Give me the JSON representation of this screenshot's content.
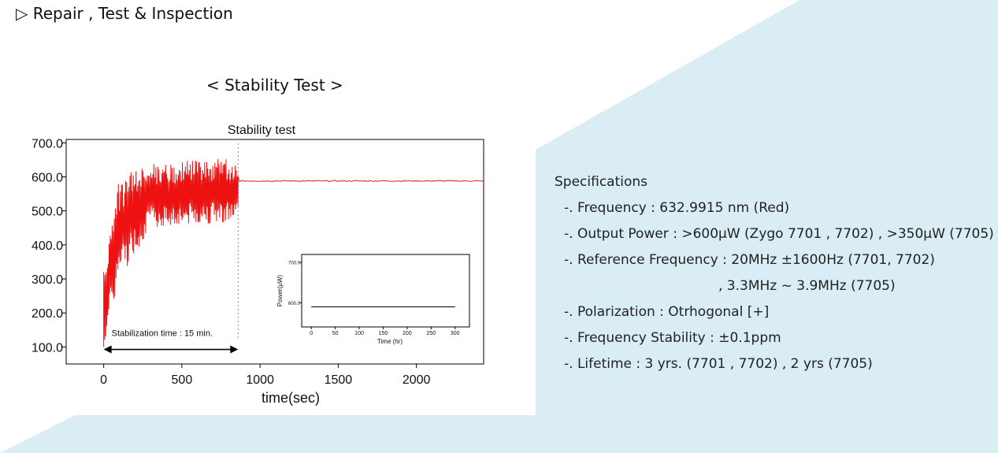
{
  "heading": "▷ Repair , Test & Inspection",
  "caption": "< Stability Test >",
  "colors": {
    "background_band": "#daecf4",
    "series_red": "#ee1111",
    "inset_line": "#000000"
  },
  "specifications": {
    "title": "Specifications",
    "lines": [
      "-. Frequency : 632.9915 nm (Red)",
      "-. Output Power : >600μW (Zygo 7701 , 7702) , >350μW (7705)",
      "-. Reference Frequency : 20MHz ±1600Hz (7701, 7702)",
      ", 3.3MHz ~ 3.9MHz (7705)",
      "-. Polarization : Otrhogonal [+]",
      "-. Frequency Stability : ±0.1ppm",
      "-. Lifetime : 3 yrs. (7701 , 7702) , 2 yrs (7705)"
    ]
  },
  "chart_data": {
    "type": "line",
    "title": "Stability test",
    "xlabel": "time(sec)",
    "ylabel": "",
    "xlim": [
      -240,
      2430
    ],
    "ylim": [
      50,
      710
    ],
    "x_ticks": [
      0,
      500,
      1000,
      1500,
      2000
    ],
    "x_tick_labels": [
      "0",
      "500",
      "1000",
      "1500",
      "2000"
    ],
    "y_ticks": [
      100,
      200,
      300,
      400,
      500,
      600,
      700
    ],
    "y_tick_labels": [
      "100.0",
      "200.0",
      "300.0",
      "400.0",
      "500.0",
      "600.0",
      "700.0"
    ],
    "grid": false,
    "series": [
      {
        "color": "#ee1111",
        "points": [
          [
            0,
            100
          ],
          [
            0,
            320
          ],
          [
            5,
            470
          ],
          [
            10,
            360
          ],
          [
            20,
            560
          ],
          [
            30,
            300
          ],
          [
            40,
            470
          ],
          [
            60,
            590
          ],
          [
            80,
            280
          ],
          [
            100,
            610
          ],
          [
            150,
            450
          ],
          [
            200,
            620
          ],
          [
            300,
            470
          ],
          [
            400,
            640
          ],
          [
            500,
            480
          ],
          [
            600,
            650
          ],
          [
            700,
            470
          ],
          [
            800,
            655
          ],
          [
            850,
            470
          ],
          [
            860,
            600
          ],
          [
            900,
            590
          ],
          [
            1000,
            588
          ],
          [
            1500,
            587
          ],
          [
            2000,
            588
          ],
          [
            2430,
            588
          ]
        ],
        "regime": {
          "warmup_end": 860,
          "warmup_low_values": [
            [
              0,
              100
            ],
            [
              100,
              300
            ],
            [
              300,
              450
            ],
            [
              860,
              470
            ]
          ],
          "warmup_high_values": [
            [
              0,
              320
            ],
            [
              100,
              600
            ],
            [
              300,
              640
            ],
            [
              860,
              655
            ]
          ],
          "stable_value": 588
        }
      }
    ],
    "annotations": [
      {
        "text": "Stabilization time : 15 min.",
        "x_start": 0,
        "x_end": 860,
        "y": 65
      },
      {
        "type": "dashed-vertical-line",
        "x": 860
      }
    ],
    "inset": {
      "xlabel": "Time (hr)",
      "ylabel": "Power(μW)",
      "xlim": [
        -20,
        330
      ],
      "ylim": [
        540,
        720
      ],
      "x_ticks": [
        0,
        50,
        100,
        150,
        200,
        250,
        300
      ],
      "x_tick_labels": [
        "0",
        "50",
        "100",
        "150",
        "200",
        "250",
        "300"
      ],
      "y_ticks": [
        600,
        700
      ],
      "y_tick_labels": [
        "600.0",
        "700.0"
      ],
      "series": [
        {
          "x": [
            0,
            300
          ],
          "y": [
            590,
            590
          ],
          "color": "#000000"
        }
      ]
    }
  }
}
